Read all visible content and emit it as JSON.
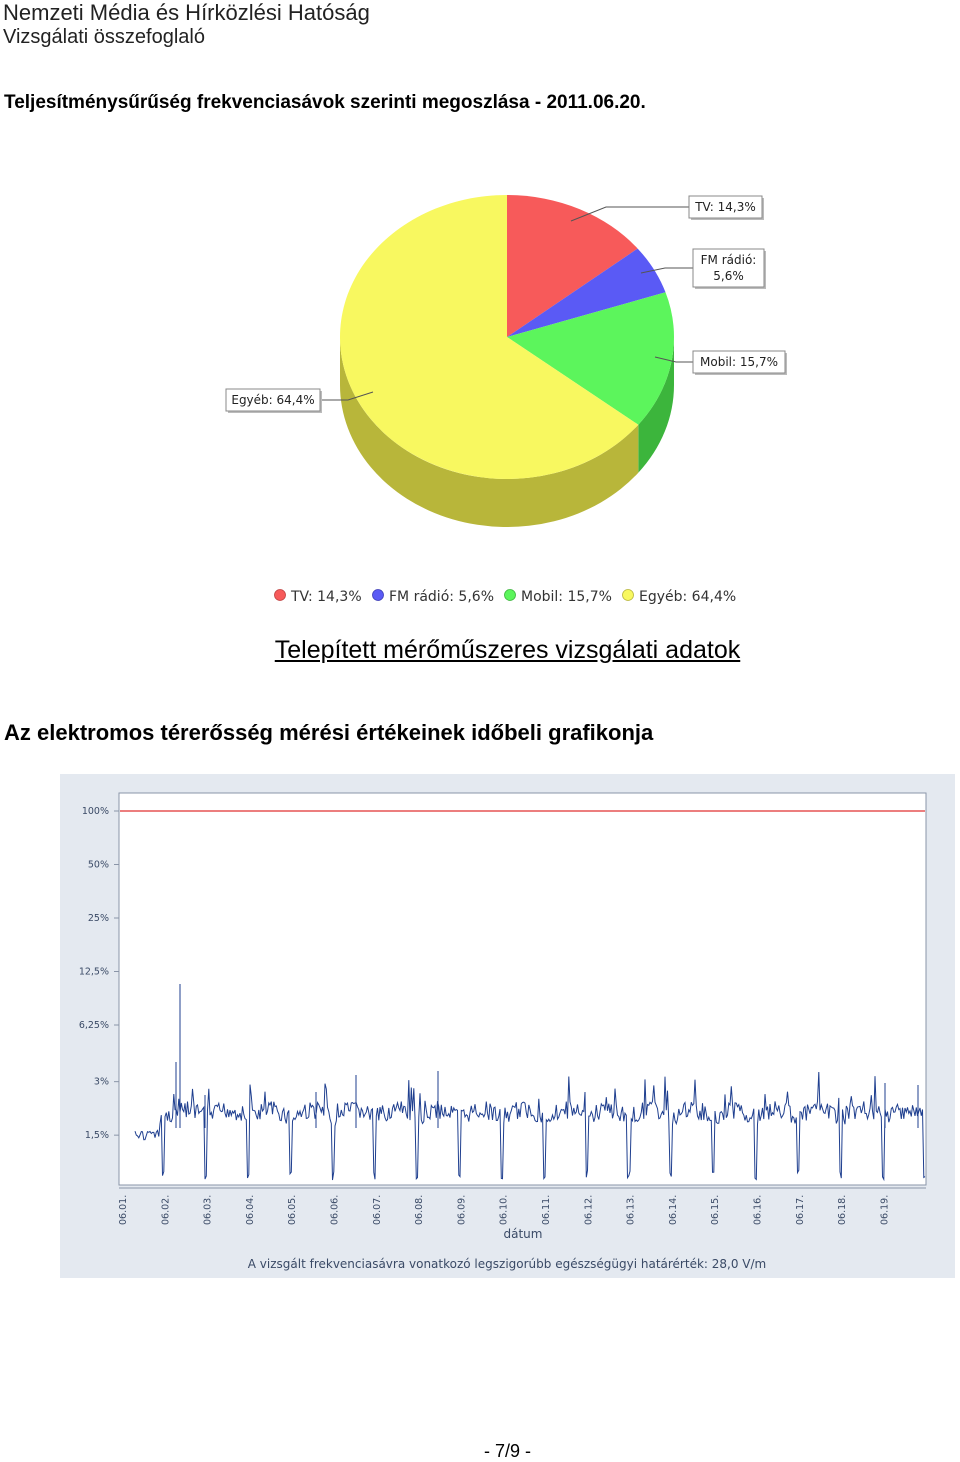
{
  "header": {
    "org": "Nemzeti Média és Hírközlési Hatóság",
    "subtitle": "Vizsgálati összefoglaló"
  },
  "pie_section": {
    "title": "Teljesítménysűrűség frekvenciasávok szerinti megoszlása - 2011.06.20."
  },
  "section_title": "Telepített mérőműszeres vizsgálati adatok",
  "timeseries_section": {
    "title": "Az elektromos térerősség mérési értékeinek időbeli grafikonja"
  },
  "page_number": "- 7/9 -",
  "chart_data": [
    {
      "type": "pie",
      "slices": [
        {
          "label": "TV",
          "value": 14.3,
          "callout": "TV: 14,3%",
          "legend": "TV: 14,3%",
          "color": "#f75a5a",
          "side": "#c04040"
        },
        {
          "label": "FM rádió",
          "value": 5.6,
          "callout": "FM rádió:|5,6%",
          "legend": "FM rádió: 5,6%",
          "color": "#5a5af5",
          "side": "#3e3eb8"
        },
        {
          "label": "Mobil",
          "value": 15.7,
          "callout": "Mobil: 15,7%",
          "legend": "Mobil: 15,7%",
          "color": "#5cf55c",
          "side": "#3cb53c"
        },
        {
          "label": "Egyéb",
          "value": 64.4,
          "callout": "Egyéb: 64,4%",
          "legend": "Egyéb: 64,4%",
          "color": "#f8f860",
          "side": "#b8b63a"
        }
      ],
      "legend_placement": "bottom"
    },
    {
      "type": "line",
      "y_scale": "log",
      "y_ticks": [
        "100%",
        "50%",
        "25%",
        "12,5%",
        "6,25%",
        "3%",
        "1,5%"
      ],
      "y_tick_values": [
        100,
        50,
        25,
        12.5,
        6.25,
        3,
        1.5
      ],
      "x_ticks": [
        "06.01.",
        "06.02.",
        "06.03.",
        "06.04.",
        "06.05.",
        "06.06.",
        "06.07.",
        "06.08.",
        "06.09.",
        "06.10.",
        "06.11.",
        "06.12.",
        "06.13.",
        "06.14.",
        "06.15.",
        "06.16.",
        "06.17.",
        "06.18.",
        "06.19."
      ],
      "xlabel": "dátum",
      "limit_line_value": 100,
      "limit_color": "#e03030",
      "series_color": "#1f3f8f",
      "typical_level": 1.8,
      "night_dip_level": 0.8,
      "footnote": "A vizsgált frekvenciasávra vonatkozó legszigorúbb egészségügyi határérték: 28,0 V/m"
    }
  ]
}
